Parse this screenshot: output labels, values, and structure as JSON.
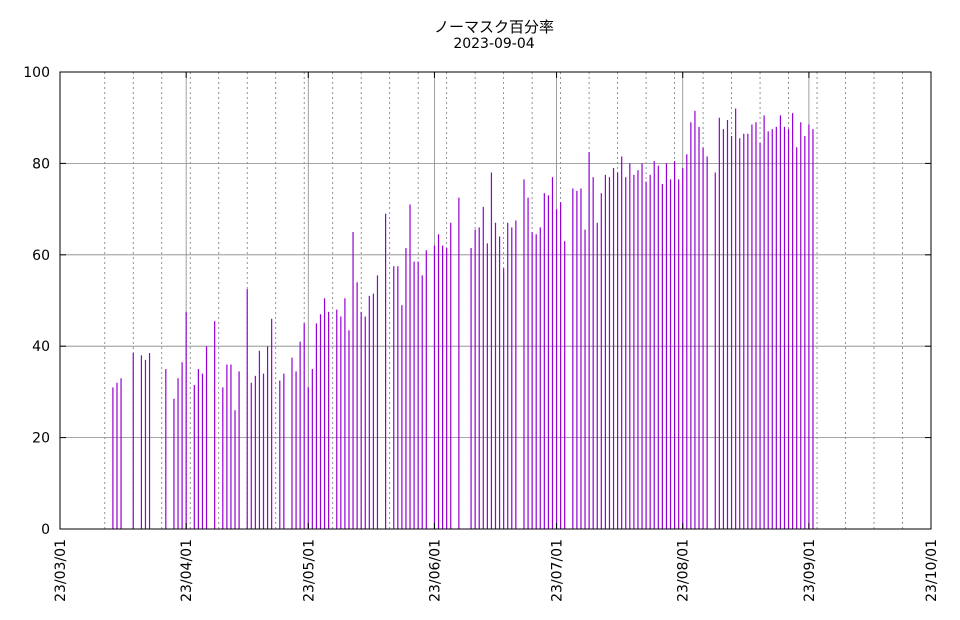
{
  "chart_data": {
    "type": "bar",
    "title": "ノーマスク百分率",
    "subtitle": "2023-09-04",
    "xlabel": "",
    "ylabel": "",
    "ylim": [
      0,
      100
    ],
    "yticks": [
      0,
      20,
      40,
      60,
      80,
      100
    ],
    "xlim": [
      "2023-03-01",
      "2023-10-01"
    ],
    "xticks": [
      "23/03/01",
      "23/04/01",
      "23/05/01",
      "23/06/01",
      "23/07/01",
      "23/08/01",
      "23/09/01",
      "23/10/01"
    ],
    "xtick_dates": [
      "2023-03-01",
      "2023-04-01",
      "2023-05-01",
      "2023-06-01",
      "2023-07-01",
      "2023-08-01",
      "2023-09-01",
      "2023-10-01"
    ],
    "grid": true,
    "bar_color": "#9400d3",
    "points": [
      [
        "2023-03-14",
        31
      ],
      [
        "2023-03-15",
        32
      ],
      [
        "2023-03-16",
        33
      ],
      [
        "2023-03-19",
        38.5
      ],
      [
        "2023-03-21",
        38
      ],
      [
        "2023-03-22",
        37
      ],
      [
        "2023-03-23",
        38.5
      ],
      [
        "2023-03-27",
        35
      ],
      [
        "2023-03-29",
        28.5
      ],
      [
        "2023-03-30",
        33
      ],
      [
        "2023-03-31",
        36.5
      ],
      [
        "2023-04-01",
        47.5
      ],
      [
        "2023-04-03",
        31.5
      ],
      [
        "2023-04-04",
        35
      ],
      [
        "2023-04-05",
        34
      ],
      [
        "2023-04-06",
        40
      ],
      [
        "2023-04-08",
        45.5
      ],
      [
        "2023-04-10",
        31
      ],
      [
        "2023-04-11",
        36
      ],
      [
        "2023-04-12",
        36
      ],
      [
        "2023-04-13",
        26
      ],
      [
        "2023-04-14",
        34.5
      ],
      [
        "2023-04-16",
        52.5
      ],
      [
        "2023-04-17",
        32
      ],
      [
        "2023-04-18",
        33.5
      ],
      [
        "2023-04-19",
        39
      ],
      [
        "2023-04-20",
        34
      ],
      [
        "2023-04-21",
        40
      ],
      [
        "2023-04-22",
        46
      ],
      [
        "2023-04-24",
        32.5
      ],
      [
        "2023-04-25",
        34
      ],
      [
        "2023-04-27",
        37.5
      ],
      [
        "2023-04-28",
        34.5
      ],
      [
        "2023-04-29",
        41
      ],
      [
        "2023-04-30",
        45
      ],
      [
        "2023-05-01",
        31
      ],
      [
        "2023-05-02",
        35
      ],
      [
        "2023-05-03",
        45
      ],
      [
        "2023-05-04",
        47
      ],
      [
        "2023-05-05",
        50.5
      ],
      [
        "2023-05-06",
        47.5
      ],
      [
        "2023-05-08",
        48
      ],
      [
        "2023-05-09",
        46.5
      ],
      [
        "2023-05-10",
        50.5
      ],
      [
        "2023-05-11",
        43.5
      ],
      [
        "2023-05-12",
        65
      ],
      [
        "2023-05-13",
        54
      ],
      [
        "2023-05-14",
        47.5
      ],
      [
        "2023-05-15",
        46.5
      ],
      [
        "2023-05-16",
        51
      ],
      [
        "2023-05-17",
        51.5
      ],
      [
        "2023-05-18",
        55.5
      ],
      [
        "2023-05-20",
        69
      ],
      [
        "2023-05-22",
        57.5
      ],
      [
        "2023-05-23",
        57.5
      ],
      [
        "2023-05-24",
        49
      ],
      [
        "2023-05-25",
        61.5
      ],
      [
        "2023-05-26",
        71
      ],
      [
        "2023-05-27",
        58.5
      ],
      [
        "2023-05-28",
        58.5
      ],
      [
        "2023-05-29",
        55.5
      ],
      [
        "2023-05-30",
        61
      ],
      [
        "2023-06-01",
        62
      ],
      [
        "2023-06-02",
        64.5
      ],
      [
        "2023-06-03",
        62
      ],
      [
        "2023-06-04",
        61.5
      ],
      [
        "2023-06-05",
        67
      ],
      [
        "2023-06-07",
        72.5
      ],
      [
        "2023-06-10",
        61.5
      ],
      [
        "2023-06-11",
        65.5
      ],
      [
        "2023-06-12",
        66
      ],
      [
        "2023-06-13",
        70.5
      ],
      [
        "2023-06-14",
        62.5
      ],
      [
        "2023-06-15",
        78
      ],
      [
        "2023-06-16",
        67
      ],
      [
        "2023-06-17",
        64
      ],
      [
        "2023-06-18",
        57
      ],
      [
        "2023-06-19",
        67
      ],
      [
        "2023-06-20",
        66
      ],
      [
        "2023-06-21",
        67.5
      ],
      [
        "2023-06-23",
        76.5
      ],
      [
        "2023-06-24",
        72.5
      ],
      [
        "2023-06-25",
        65
      ],
      [
        "2023-06-26",
        64.5
      ],
      [
        "2023-06-27",
        66
      ],
      [
        "2023-06-28",
        73.5
      ],
      [
        "2023-06-29",
        73
      ],
      [
        "2023-06-30",
        77
      ],
      [
        "2023-07-01",
        70
      ],
      [
        "2023-07-02",
        71.5
      ],
      [
        "2023-07-03",
        63
      ],
      [
        "2023-07-05",
        74.5
      ],
      [
        "2023-07-06",
        74
      ],
      [
        "2023-07-07",
        74.5
      ],
      [
        "2023-07-08",
        65.5
      ],
      [
        "2023-07-09",
        82.5
      ],
      [
        "2023-07-10",
        77
      ],
      [
        "2023-07-11",
        67
      ],
      [
        "2023-07-12",
        73.5
      ],
      [
        "2023-07-13",
        77.5
      ],
      [
        "2023-07-14",
        77
      ],
      [
        "2023-07-15",
        79
      ],
      [
        "2023-07-16",
        78
      ],
      [
        "2023-07-17",
        81.5
      ],
      [
        "2023-07-18",
        77
      ],
      [
        "2023-07-19",
        80
      ],
      [
        "2023-07-20",
        77.5
      ],
      [
        "2023-07-21",
        78.5
      ],
      [
        "2023-07-22",
        80
      ],
      [
        "2023-07-23",
        76
      ],
      [
        "2023-07-24",
        77.5
      ],
      [
        "2023-07-25",
        80.5
      ],
      [
        "2023-07-26",
        79.5
      ],
      [
        "2023-07-27",
        75.5
      ],
      [
        "2023-07-28",
        80
      ],
      [
        "2023-07-29",
        76.5
      ],
      [
        "2023-07-30",
        80.5
      ],
      [
        "2023-07-31",
        76.5
      ],
      [
        "2023-08-01",
        79
      ],
      [
        "2023-08-02",
        82
      ],
      [
        "2023-08-03",
        89
      ],
      [
        "2023-08-04",
        91.5
      ],
      [
        "2023-08-05",
        88
      ],
      [
        "2023-08-06",
        83.5
      ],
      [
        "2023-08-07",
        81.5
      ],
      [
        "2023-08-09",
        78
      ],
      [
        "2023-08-10",
        90
      ],
      [
        "2023-08-11",
        87.5
      ],
      [
        "2023-08-12",
        89.5
      ],
      [
        "2023-08-13",
        86
      ],
      [
        "2023-08-14",
        92
      ],
      [
        "2023-08-15",
        85.5
      ],
      [
        "2023-08-16",
        86.5
      ],
      [
        "2023-08-17",
        86.5
      ],
      [
        "2023-08-18",
        88.5
      ],
      [
        "2023-08-19",
        89
      ],
      [
        "2023-08-20",
        84.5
      ],
      [
        "2023-08-21",
        90.5
      ],
      [
        "2023-08-22",
        87
      ],
      [
        "2023-08-23",
        87.5
      ],
      [
        "2023-08-24",
        88
      ],
      [
        "2023-08-25",
        90.5
      ],
      [
        "2023-08-26",
        88
      ],
      [
        "2023-08-27",
        87.5
      ],
      [
        "2023-08-28",
        91
      ],
      [
        "2023-08-29",
        83.5
      ],
      [
        "2023-08-30",
        89
      ],
      [
        "2023-08-31",
        86
      ],
      [
        "2023-09-01",
        88.5
      ],
      [
        "2023-09-02",
        87.5
      ]
    ]
  }
}
